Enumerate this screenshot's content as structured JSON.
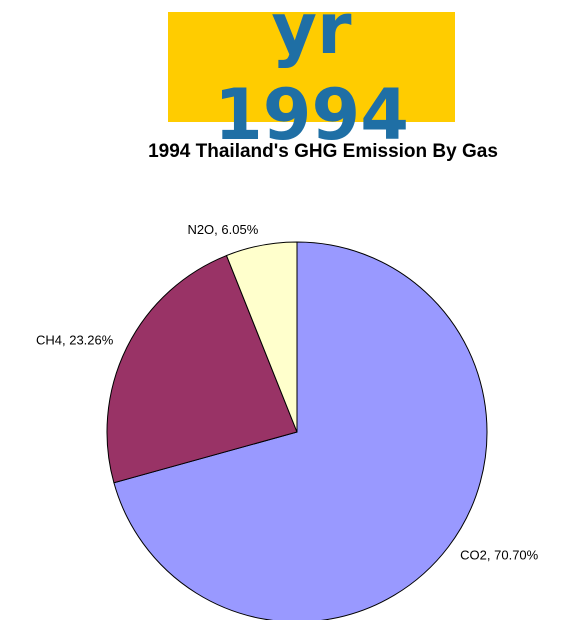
{
  "header": {
    "label": "yr 1994"
  },
  "chart_data": {
    "type": "pie",
    "title": "1994 Thailand's GHG Emission By Gas",
    "values": [
      70.7,
      23.26,
      6.05
    ],
    "value_labels": [
      "CO2, 70.70%",
      "CH4, 23.26%",
      "N2O, 6.05%"
    ],
    "colors": [
      "#9999ff",
      "#993366",
      "#ffffcc"
    ]
  }
}
